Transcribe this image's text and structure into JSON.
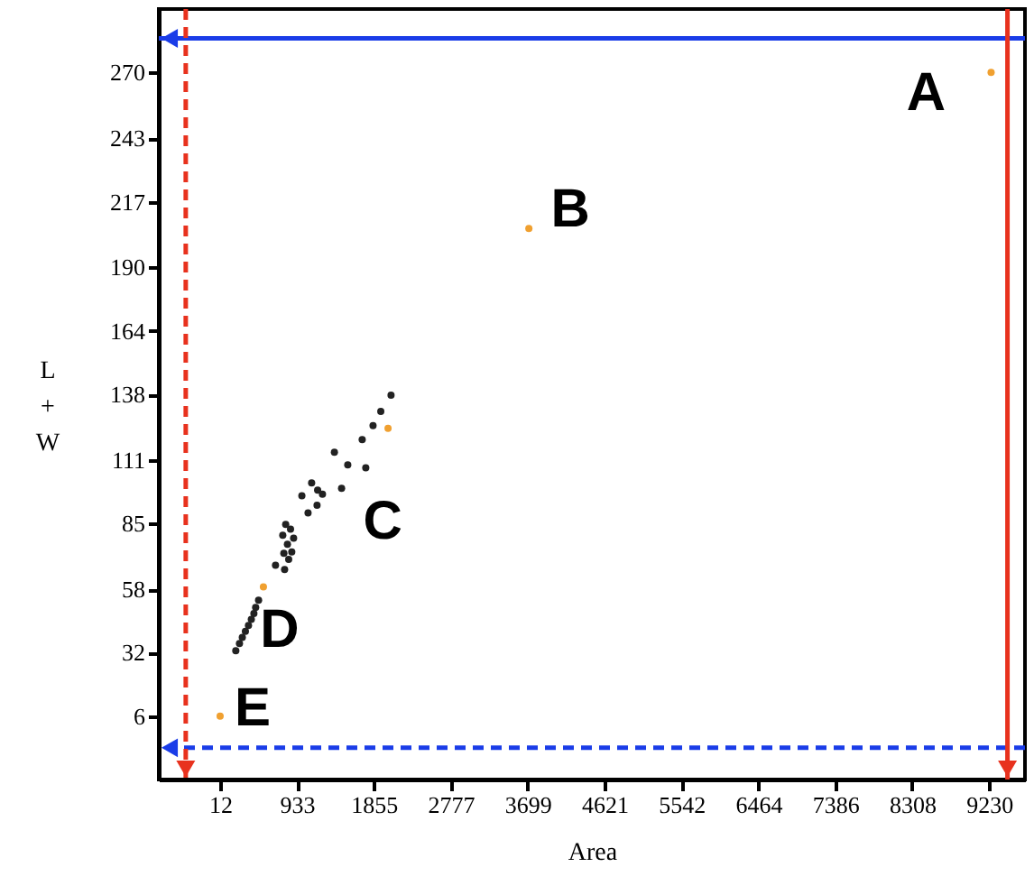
{
  "chart_data": {
    "type": "scatter",
    "xlabel": "Area",
    "ylabel": "L + W",
    "xlim": [
      -723,
      9660
    ],
    "ylim": [
      -20,
      296
    ],
    "xticks": [
      12,
      933,
      1855,
      2777,
      3699,
      4621,
      5542,
      6464,
      7386,
      8308,
      9230
    ],
    "yticks": [
      6,
      32,
      58,
      85,
      111,
      138,
      164,
      190,
      217,
      243,
      270
    ],
    "grid": false,
    "marker": "circle",
    "series": [
      {
        "color": "#222222",
        "x": [
          2061,
          1938,
          1845,
          1715,
          1382,
          1542,
          1758,
          1109,
          1468,
          992,
          1181,
          1239,
          1174,
          1066,
          798,
          856,
          763,
          893,
          819,
          776,
          871,
          676,
          785,
          834,
          473,
          438,
          417,
          386,
          352,
          315,
          278,
          244,
          200
        ],
        "values": [
          137.6,
          131.0,
          125.1,
          119.4,
          114.2,
          109.0,
          107.8,
          101.6,
          99.4,
          96.4,
          98.7,
          97.0,
          92.5,
          89.3,
          84.6,
          82.7,
          80.2,
          79.0,
          76.5,
          72.8,
          73.3,
          67.9,
          66.1,
          70.3,
          53.5,
          50.6,
          48.1,
          45.7,
          43.2,
          40.8,
          38.3,
          35.8,
          32.8
        ]
      },
      {
        "color": "#f0a030",
        "x": [
          9254,
          3713,
          2025,
          531,
          12
        ],
        "values": [
          270,
          206,
          124,
          59,
          6
        ]
      }
    ],
    "ref_lines": [
      {
        "axis": "y",
        "value": 284,
        "color": "#1a3ce8",
        "line_style": "solid"
      },
      {
        "axis": "y",
        "value": -7,
        "color": "#1a3ce8",
        "line_style": "dashed"
      },
      {
        "axis": "x",
        "value": -400,
        "color": "#e8321e",
        "line_style": "dashed"
      },
      {
        "axis": "x",
        "value": 9450,
        "color": "#e8321e",
        "line_style": "solid"
      }
    ],
    "annotations": [
      {
        "text": "A",
        "x": 9254,
        "y": 270
      },
      {
        "text": "B",
        "x": 3713,
        "y": 206
      },
      {
        "text": "C",
        "x": 2025,
        "y": 124
      },
      {
        "text": "D",
        "x": 531,
        "y": 59
      },
      {
        "text": "E",
        "x": 12,
        "y": 6
      }
    ]
  }
}
